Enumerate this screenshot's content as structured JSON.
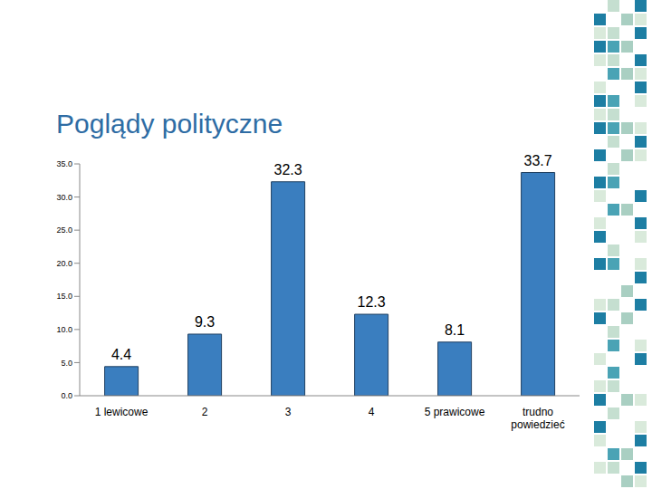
{
  "chart_data": {
    "type": "bar",
    "title": "Poglądy polityczne",
    "categories": [
      "1 lewicowe",
      "2",
      "3",
      "4",
      "5 prawicowe",
      "trudno powiedzieć"
    ],
    "values": [
      4.4,
      9.3,
      32.3,
      12.3,
      8.1,
      33.7
    ],
    "color": "#3a7ebf",
    "ylim": [
      0,
      35
    ],
    "yticks": [
      {
        "value": 0,
        "label": "0.0"
      },
      {
        "value": 5,
        "label": "5.0"
      },
      {
        "value": 10,
        "label": "10.0"
      },
      {
        "value": 15,
        "label": "15.0"
      },
      {
        "value": 20,
        "label": "20.0"
      },
      {
        "value": 25,
        "label": "25.0"
      },
      {
        "value": 30,
        "label": "30.0"
      },
      {
        "value": 35,
        "label": "35.0"
      }
    ],
    "grid": false,
    "data_labels": true
  }
}
